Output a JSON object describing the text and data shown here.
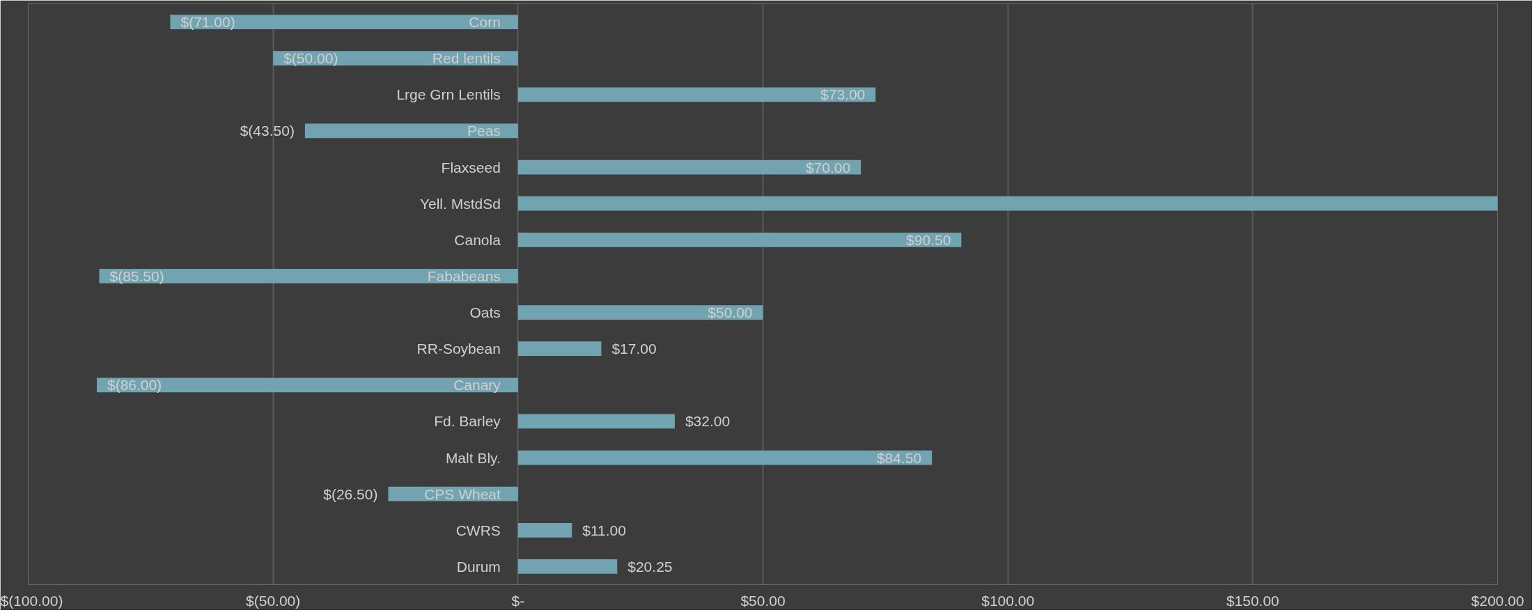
{
  "chart_data": {
    "type": "bar",
    "orientation": "horizontal",
    "categories": [
      "Corn",
      "Red lentils",
      "Lrge Grn Lentils",
      "Peas",
      "Flaxseed",
      "Yell. MstdSd",
      "Canola",
      "Fababeans",
      "Oats",
      "RR-Soybean",
      "Canary",
      "Fd. Barley",
      "Malt Bly.",
      "CPS Wheat",
      "CWRS",
      "Durum"
    ],
    "values": [
      -71,
      -50,
      73,
      -43.5,
      70,
      200,
      90.5,
      -85.5,
      50,
      17,
      -86,
      32,
      84.5,
      -26.5,
      11,
      20.25
    ],
    "value_labels": [
      "$(71.00)",
      "$(50.00)",
      "$73.00",
      "$(43.50)",
      "$70.00",
      null,
      "$90.50",
      "$(85.50)",
      "$50.00",
      "$17.00",
      "$(86.00)",
      "$32.00",
      "$84.50",
      "$(26.50)",
      "$11.00",
      "$20.25"
    ],
    "color": "#71a3b1",
    "xlim": [
      -100,
      200
    ],
    "xticks": [
      {
        "value": -100,
        "label": "$(100.00)"
      },
      {
        "value": -50,
        "label": "$(50.00)"
      },
      {
        "value": 0,
        "label": "$-"
      },
      {
        "value": 50,
        "label": "$50.00"
      },
      {
        "value": 100,
        "label": "$100.00"
      },
      {
        "value": 150,
        "label": "$150.00"
      },
      {
        "value": 200,
        "label": "$200.00"
      }
    ],
    "grid": "x"
  }
}
